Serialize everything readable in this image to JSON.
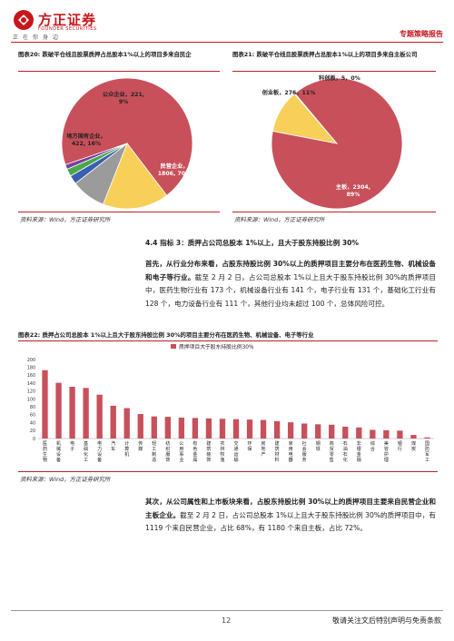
{
  "header": {
    "logo_cn": "方正证券",
    "logo_en": "FOUNDER SECURITIES",
    "slogan": "正在你身边",
    "report_type": "专题策略报告"
  },
  "figure20": {
    "title": "图表20: 跌破平仓线且股票质押占总股本1%以上的项目多来自民企",
    "source": "资料来源：Wind，方正证券研究所"
  },
  "figure21": {
    "title": "图表21: 跌破平仓线且股票质押占总股本1%以上的项目多来自主板公司",
    "source": "资料来源：Wind，方正证券研究所"
  },
  "section": {
    "heading": "4.4 指标 3：质押占公司总股本 1%以上，且大于股东持股比例 30%",
    "para1_bold": "首先，从行业分布来看，占股东持股比例 30%以上的质押项目主要分布在医药生物、机械设备和电子等行业。",
    "para1_rest": "截至 2 月 2 日，占公司总股本 1%以上且大于股东持股比例 30%的质押项目中，医药生物行业有 173 个，机械设备行业有 141 个，电子行业有 131 个，基础化工行业有 128 个，电力设备行业有 111 个，其他行业均未超过 100 个，总体风险可控。",
    "para2_bold": "其次，从公司属性和上市板块来看，占股东持股比例 30%以上的质押项目主要来自民营企业和主板企业。",
    "para2_rest": "截至 2 月 2 日，占公司总股本 1%以上且大于股东持股比例 30%的质押项目中，有 1119 个来自民营企业，占比 68%，有 1180 个来自主板，占比 72%。"
  },
  "figure22": {
    "title": "图表22: 质押占公司总股本 1%以上且大于股东持股比例 30%的项目主要分布在医药生物、机械设备、电子等行业",
    "source": "资料来源：Wind，方正证券研究所"
  },
  "chart_data": [
    {
      "type": "pie",
      "slices": [
        {
          "label": "民营企业",
          "value": 1806,
          "pct": "70%",
          "color": "#c8505a"
        },
        {
          "label": "地方国有企业",
          "value": 422,
          "pct": "16%",
          "color": "#f8cf58"
        },
        {
          "label": "公众企业",
          "value": 221,
          "pct": "9%",
          "color": "#9b9b9b"
        },
        {
          "label": "",
          "value": 56,
          "pct": "",
          "color": "#3b5fb0"
        },
        {
          "label": "",
          "value": 48,
          "pct": "",
          "color": "#4aa84a"
        },
        {
          "label": "",
          "value": 30,
          "pct": "",
          "color": "#7a3fa0"
        }
      ],
      "label_texts": {
        "private": "民营企业，\n1806, 70%",
        "local_soe": "地方国有企业，\n422, 16%",
        "public": "公众企业，221,\n9%"
      }
    },
    {
      "type": "pie",
      "slices": [
        {
          "label": "主板",
          "value": 2304,
          "pct": "89%",
          "color": "#c8505a"
        },
        {
          "label": "创业板",
          "value": 276,
          "pct": "11%",
          "color": "#f8cf58"
        },
        {
          "label": "科创板",
          "value": 5,
          "pct": "0%",
          "color": "#9b9b9b"
        }
      ],
      "label_texts": {
        "main": "主板，2304,\n89%",
        "gem": "创业板，276，11%",
        "star": "科创板，5，0%"
      }
    },
    {
      "type": "bar",
      "legend": "质押项目大于股东持股比例30%",
      "ylim": [
        0,
        200
      ],
      "yticks": [
        "0",
        "20",
        "40",
        "60",
        "80",
        "100",
        "120",
        "140",
        "160",
        "180",
        "200"
      ],
      "categories": [
        "医药生物",
        "机械设备",
        "电子",
        "基础化工",
        "电力设备",
        "汽车",
        "计算机",
        "传媒",
        "轻工制造",
        "纺织服饰",
        "公用事业",
        "有色金属",
        "建筑装饰",
        "农林牧渔",
        "交通运输",
        "环保",
        "房地产",
        "建筑材料",
        "家用电器",
        "社会服务",
        "钢铁",
        "商贸零售",
        "石油石化",
        "非银金融",
        "综合",
        "美容护理",
        "银行",
        "煤炭",
        "国防军工"
      ],
      "values": [
        173,
        141,
        131,
        128,
        111,
        83,
        77,
        62,
        56,
        55,
        53,
        52,
        51,
        50,
        49,
        48,
        47,
        44,
        41,
        38,
        36,
        35,
        30,
        28,
        22,
        21,
        20,
        9,
        3
      ]
    }
  ],
  "footer": {
    "page": "12",
    "disclaimer": "敬请关注文后特别声明与免责条款"
  }
}
